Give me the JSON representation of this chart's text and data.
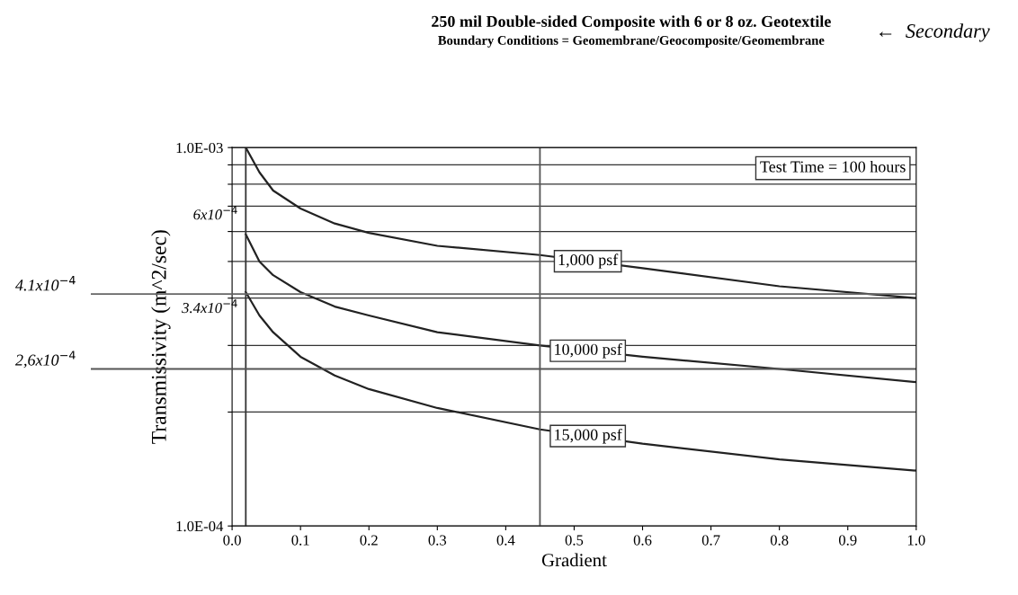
{
  "chart_data": {
    "type": "line",
    "title": "250 mil Double-sided Composite with 6 or 8 oz. Geotextile",
    "subtitle": "Boundary Conditions = Geomembrane/Geocomposite/Geomembrane",
    "xlabel": "Gradient",
    "ylabel": "Transmissivity (m^2/sec)",
    "log": "y",
    "grid": "y",
    "legend": false,
    "marker": "none",
    "line_style": "solid",
    "xlim": [
      0,
      1
    ],
    "ylim": [
      0.0001,
      0.001
    ],
    "xticks": [
      {
        "value": 0,
        "label": "0.0"
      },
      {
        "value": 0.1,
        "label": "0.1"
      },
      {
        "value": 0.2,
        "label": "0.2"
      },
      {
        "value": 0.3,
        "label": "0.3"
      },
      {
        "value": 0.4,
        "label": "0.4"
      },
      {
        "value": 0.5,
        "label": "0.5"
      },
      {
        "value": 0.6,
        "label": "0.6"
      },
      {
        "value": 0.7,
        "label": "0.7"
      },
      {
        "value": 0.8,
        "label": "0.8"
      },
      {
        "value": 0.9,
        "label": "0.9"
      },
      {
        "value": 1,
        "label": "1.0"
      }
    ],
    "yticks": [
      {
        "value": 0.0001,
        "label": "1.0E-04"
      },
      {
        "value": 0.0002,
        "label": null
      },
      {
        "value": 0.0003,
        "label": null
      },
      {
        "value": 0.0004,
        "label": null
      },
      {
        "value": 0.0005,
        "label": null
      },
      {
        "value": 0.0006,
        "label": null
      },
      {
        "value": 0.0007,
        "label": null
      },
      {
        "value": 0.0008,
        "label": null
      },
      {
        "value": 0.0009,
        "label": null
      },
      {
        "value": 0.001,
        "label": "1.0E-03"
      }
    ],
    "x": [
      0.02,
      0.04,
      0.06,
      0.1,
      0.15,
      0.2,
      0.3,
      0.45,
      0.6,
      0.8,
      1.0
    ],
    "series": [
      {
        "name": "1,000 psf",
        "color": "#222222",
        "values": [
          0.001,
          0.00086,
          0.00077,
          0.00069,
          0.00063,
          0.000595,
          0.00055,
          0.00052,
          0.00048,
          0.00043,
          0.0004
        ]
      },
      {
        "name": "10,000 psf",
        "color": "#222222",
        "values": [
          0.00059,
          0.0005,
          0.00046,
          0.000415,
          0.00038,
          0.00036,
          0.000325,
          0.0003,
          0.00028,
          0.00026,
          0.00024
        ]
      },
      {
        "name": "15,000 psf",
        "color": "#222222",
        "values": [
          0.000415,
          0.00036,
          0.000325,
          0.00028,
          0.00025,
          0.00023,
          0.000205,
          0.00018,
          0.000165,
          0.00015,
          0.00014
        ]
      }
    ],
    "ref_lines": [
      {
        "axis": "x",
        "value": 0.02,
        "color": "#333333"
      },
      {
        "axis": "x",
        "value": 0.45,
        "color": "#555555"
      },
      {
        "axis": "y",
        "value": 0.00041,
        "label": "4.1x10$^{−4}$",
        "color": "#666666"
      },
      {
        "axis": "y",
        "value": 0.00026,
        "label": "2,6x10$^{−4}$",
        "color": "#555555"
      }
    ],
    "annotations": [
      "Test Time = 100 hours",
      "←  Secondary",
      {
        "text": "6x10$^{−4}$",
        "x": 0.02,
        "y": 0.0006
      },
      {
        "text": "3.4x10$^{−4}$",
        "x": 0.02,
        "y": 0.00034
      }
    ]
  }
}
